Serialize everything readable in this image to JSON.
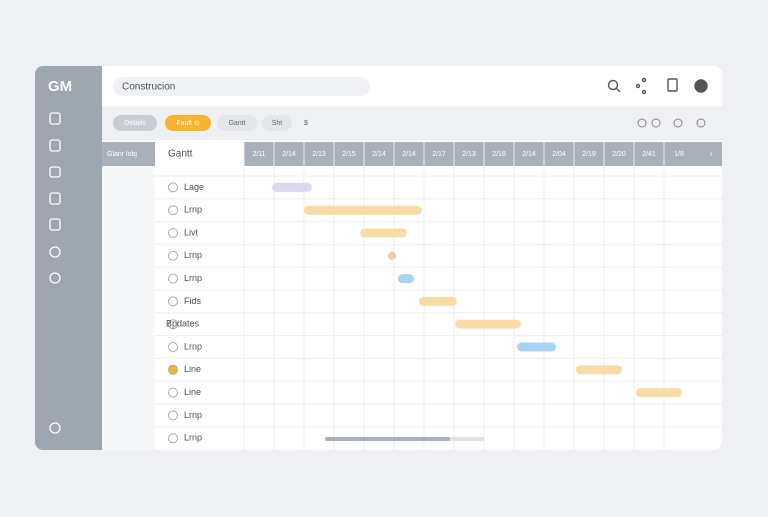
{
  "app": {
    "logo": "GM",
    "search": "Construcion"
  },
  "toolbar": {
    "buttons": [
      "Details",
      "Fault ⊙",
      "Gantt",
      "Sht",
      "$"
    ]
  },
  "grid": {
    "corner": "Glanr lobj",
    "task_header": "Gantt",
    "columns": [
      "2/11",
      "2/14",
      "2/13",
      "2/15",
      "2/14",
      "2/14",
      "2/17",
      "2/13",
      "2/18",
      "2/14",
      "2/04",
      "2/19",
      "2/20",
      "2/41",
      "1/8"
    ],
    "rows": [
      "Lage",
      "Lrnp",
      "Livt",
      "Lrnp",
      "Lrnp",
      "Fids",
      "Bpdates",
      "Lrnp",
      "Line",
      "Line",
      "Lrnp",
      "Lrnp"
    ]
  }
}
